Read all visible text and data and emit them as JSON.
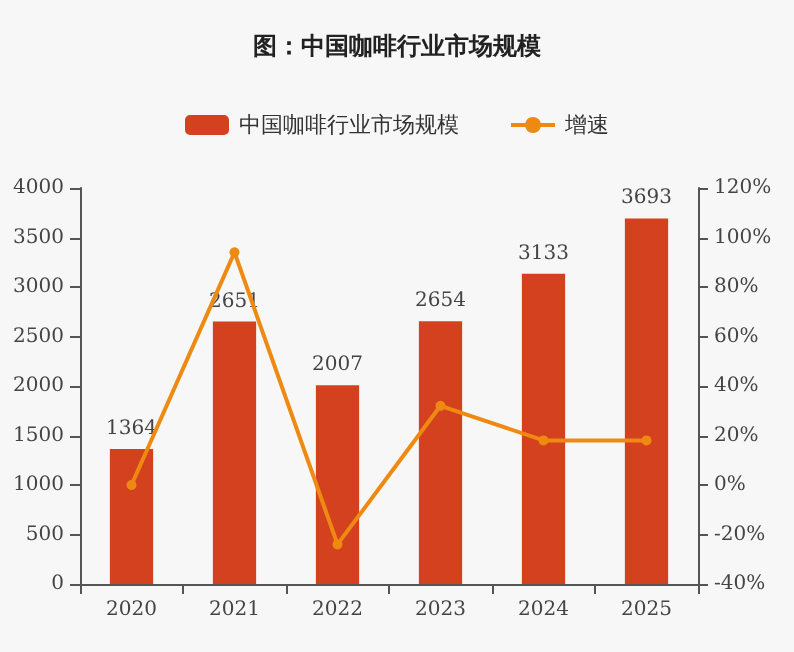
{
  "chart_data": {
    "type": "bar",
    "title": "图：中国咖啡行业市场规模",
    "categories": [
      "2020",
      "2021",
      "2022",
      "2023",
      "2024",
      "2025"
    ],
    "series": [
      {
        "name": "中国咖啡行业市场规模",
        "color": "#d4411e",
        "values": [
          1364,
          2651,
          2007,
          2654,
          3133,
          3693
        ],
        "data_labels": true
      },
      {
        "name": "增速",
        "type": "line",
        "axis": "y2",
        "color": "#ee8a12",
        "marker": "circle",
        "values": [
          0,
          94,
          -24,
          32,
          18,
          18
        ]
      }
    ],
    "ylim": [
      0,
      4000
    ],
    "yticks": [
      0,
      500,
      1000,
      1500,
      2000,
      2500,
      3000,
      3500,
      4000
    ],
    "y2lim": [
      -40,
      120
    ],
    "y2ticks": [
      {
        "value": -40,
        "label": "-40%"
      },
      {
        "value": -20,
        "label": "-20%"
      },
      {
        "value": 0,
        "label": "0%"
      },
      {
        "value": 20,
        "label": "20%"
      },
      {
        "value": 40,
        "label": "40%"
      },
      {
        "value": 60,
        "label": "60%"
      },
      {
        "value": 80,
        "label": "80%"
      },
      {
        "value": 100,
        "label": "100%"
      },
      {
        "value": 120,
        "label": "120%"
      }
    ],
    "grid": false,
    "legend": "top"
  }
}
